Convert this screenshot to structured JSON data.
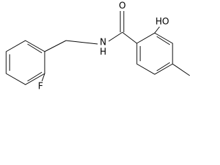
{
  "labels": {
    "carbonyl_oxygen": "O",
    "hydroxyl": "HO",
    "nitrogen": "N",
    "amide_hydrogen": "H",
    "fluorine": "F"
  }
}
